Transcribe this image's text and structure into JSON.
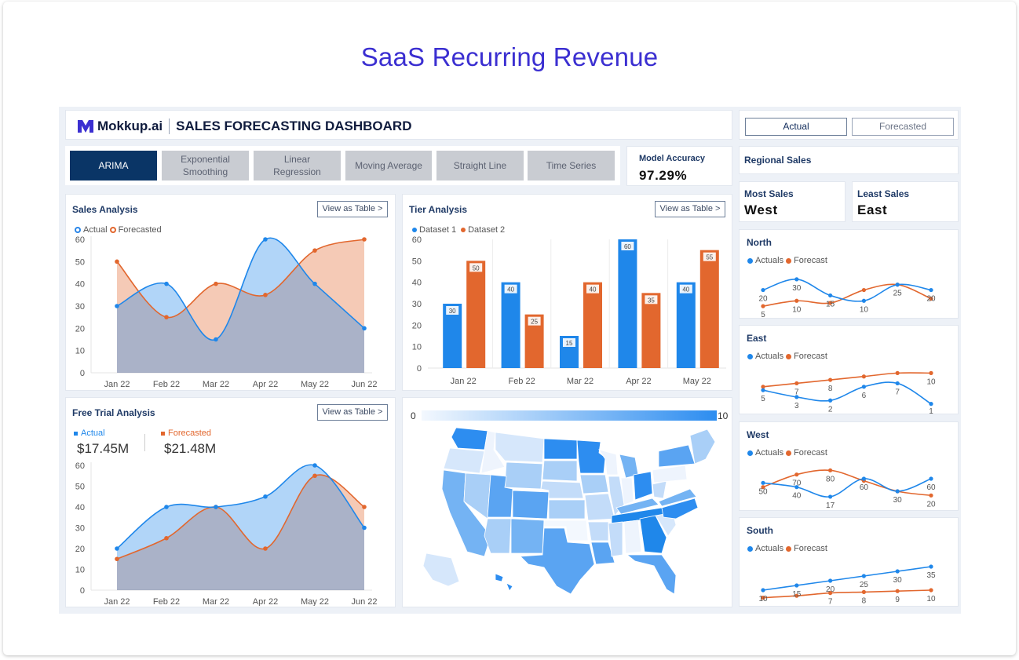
{
  "page_title": "SaaS Recurring Revenue",
  "header": {
    "brand": "Mokkup.ai",
    "dashboard_title": "SALES FORECASTING DASHBOARD"
  },
  "toggle": {
    "actual": "Actual",
    "forecasted": "Forecasted"
  },
  "tabs": [
    {
      "line1": "ARIMA",
      "line2": ""
    },
    {
      "line1": "Exponential",
      "line2": "Smoothing"
    },
    {
      "line1": "Linear",
      "line2": "Regression"
    },
    {
      "line1": "Moving Average",
      "line2": ""
    },
    {
      "line1": "Straight Line",
      "line2": ""
    },
    {
      "line1": "Time Series",
      "line2": ""
    }
  ],
  "model_accuracy": {
    "label": "Model Accuracy",
    "value": "97.29%"
  },
  "regional_sales": {
    "label": "Regional Sales"
  },
  "most_sales": {
    "label": "Most Sales",
    "value": "West"
  },
  "least_sales": {
    "label": "Least Sales",
    "value": "East"
  },
  "sales_analysis": {
    "title": "Sales Analysis",
    "button": "View as Table >",
    "legend_actual": "Actual",
    "legend_forecasted": "Forecasted"
  },
  "tier_analysis": {
    "title": "Tier Analysis",
    "button": "View as Table >",
    "legend_d1": "Dataset 1",
    "legend_d2": "Dataset 2"
  },
  "free_trial": {
    "title": "Free Trial Analysis",
    "button": "View as Table >",
    "actual_label": "Actual",
    "actual_value": "$17.45M",
    "forecasted_label": "Forecasted",
    "forecasted_value": "$21.48M"
  },
  "map": {
    "scale_min": "0",
    "scale_max": "10"
  },
  "regions_legend": {
    "actuals": "Actuals",
    "forecast": "Forecast"
  },
  "colors": {
    "blue": "#1f87ea",
    "orange": "#e2672e",
    "navy": "#0a3566",
    "title": "#3b2fd1"
  },
  "chart_data": [
    {
      "id": "sales",
      "type": "area",
      "categories": [
        "Jan 22",
        "Feb 22",
        "Mar 22",
        "Apr 22",
        "May 22",
        "Jun 22"
      ],
      "series": [
        {
          "name": "Actual",
          "values": [
            30,
            40,
            15,
            60,
            40,
            20
          ]
        },
        {
          "name": "Forecasted",
          "values": [
            50,
            25,
            40,
            35,
            55,
            60
          ]
        }
      ],
      "ylim": [
        0,
        60
      ],
      "yticks": [
        0,
        10,
        20,
        30,
        40,
        50,
        60
      ]
    },
    {
      "id": "tier",
      "type": "bar",
      "categories": [
        "Jan 22",
        "Feb 22",
        "Mar 22",
        "Apr 22",
        "May 22"
      ],
      "series": [
        {
          "name": "Dataset 1",
          "values": [
            30,
            40,
            15,
            60,
            40
          ]
        },
        {
          "name": "Dataset 2",
          "values": [
            50,
            25,
            40,
            35,
            55
          ]
        }
      ],
      "ylim": [
        0,
        60
      ],
      "yticks": [
        0,
        10,
        20,
        30,
        40,
        50,
        60
      ]
    },
    {
      "id": "trial",
      "type": "area",
      "categories": [
        "Jan 22",
        "Feb 22",
        "Mar 22",
        "Apr 22",
        "May 22",
        "Jun 22"
      ],
      "series": [
        {
          "name": "Actual",
          "values": [
            20,
            40,
            40,
            45,
            60,
            30
          ]
        },
        {
          "name": "Forecasted",
          "values": [
            15,
            25,
            40,
            20,
            55,
            40
          ]
        }
      ],
      "ylim": [
        0,
        60
      ],
      "yticks": [
        0,
        10,
        20,
        30,
        40,
        50,
        60
      ]
    },
    {
      "id": "north",
      "type": "line",
      "title": "North",
      "series": [
        {
          "name": "Actuals",
          "values": [
            20,
            30,
            15,
            10,
            25,
            20
          ]
        },
        {
          "name": "Forecast",
          "values": [
            5,
            10,
            8,
            20,
            25,
            12
          ]
        }
      ],
      "labels_a": [
        "20",
        "30",
        "15",
        "10",
        "25",
        "20"
      ],
      "labels_f": [
        "5",
        "10",
        "",
        "",
        "",
        ""
      ],
      "ylim": [
        0,
        35
      ]
    },
    {
      "id": "east",
      "type": "line",
      "title": "East",
      "series": [
        {
          "name": "Actuals",
          "values": [
            5,
            3,
            2,
            6,
            7,
            1
          ]
        },
        {
          "name": "Forecast",
          "values": [
            6,
            7,
            8,
            9,
            10,
            10
          ]
        }
      ],
      "labels_a": [
        "5",
        "3",
        "2",
        "6",
        "7",
        "1"
      ],
      "labels_f": [
        "",
        "7",
        "8",
        "",
        "",
        "10"
      ],
      "ylim": [
        0,
        11
      ]
    },
    {
      "id": "west",
      "type": "line",
      "title": "West",
      "series": [
        {
          "name": "Actuals",
          "values": [
            50,
            40,
            17,
            60,
            30,
            60
          ]
        },
        {
          "name": "Forecast",
          "values": [
            40,
            70,
            80,
            55,
            30,
            20
          ]
        }
      ],
      "labels_a": [
        "50",
        "40",
        "17",
        "60",
        "30",
        "60"
      ],
      "labels_f": [
        "",
        "70",
        "80",
        "",
        "",
        "20"
      ],
      "ylim": [
        0,
        90
      ]
    },
    {
      "id": "south",
      "type": "line",
      "title": "South",
      "series": [
        {
          "name": "Actuals",
          "values": [
            10,
            15,
            20,
            25,
            30,
            35
          ]
        },
        {
          "name": "Forecast",
          "values": [
            2,
            4,
            7,
            8,
            9,
            10
          ]
        }
      ],
      "labels_a": [
        "10",
        "15",
        "20",
        "25",
        "30",
        "35"
      ],
      "labels_f": [
        "",
        "",
        "7",
        "8",
        "9",
        "10"
      ],
      "ylim": [
        0,
        40
      ]
    }
  ]
}
